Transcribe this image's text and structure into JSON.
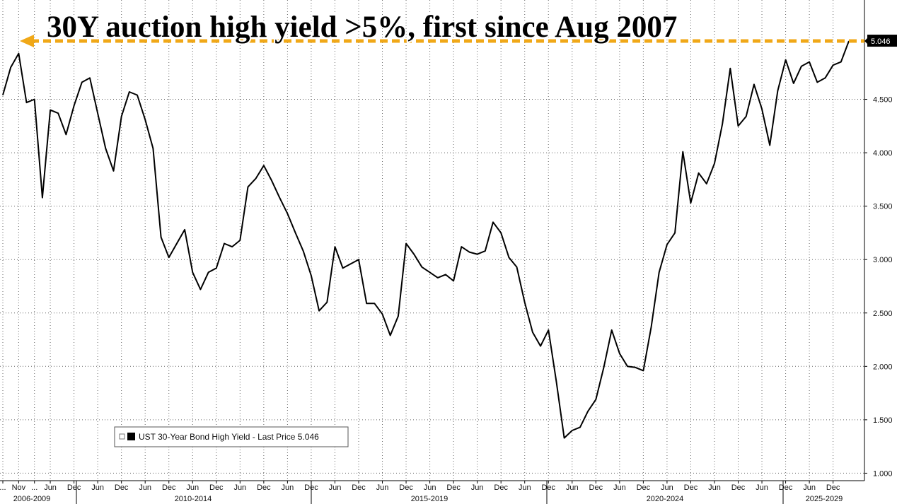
{
  "chart_data": {
    "type": "line",
    "title": "30Y auction high yield >5%, first since Aug 2007",
    "categories": [
      "...",
      null,
      "Nov",
      null,
      "...",
      null,
      "Jun",
      null,
      null,
      "Dec",
      null,
      null,
      "Jun",
      null,
      null,
      "Dec",
      null,
      null,
      "Jun",
      null,
      null,
      "Dec",
      null,
      null,
      "Jun",
      null,
      null,
      "Dec",
      null,
      null,
      "Jun",
      null,
      null,
      "Dec",
      null,
      null,
      "Jun",
      null,
      null,
      "Dec",
      null,
      null,
      "Jun",
      null,
      null,
      "Dec",
      null,
      null,
      "Jun",
      null,
      null,
      "Dec",
      null,
      null,
      "Jun",
      null,
      null,
      "Dec",
      null,
      null,
      "Jun",
      null,
      null,
      "Dec",
      null,
      null,
      "Jun",
      null,
      null,
      "Dec",
      null,
      null,
      "Jun",
      null,
      null,
      "Dec",
      null,
      null,
      "Jun",
      null,
      null,
      "Dec",
      null,
      null,
      "Jun",
      null,
      null,
      "Dec",
      null,
      null,
      "Jun",
      null,
      null,
      "Dec",
      null,
      null,
      "Jun",
      null,
      null,
      "Dec",
      null,
      null,
      "Jun",
      null,
      null,
      "Dec",
      null,
      null
    ],
    "x_groups": [
      "2006-2009",
      "2010-2014",
      "2015-2019",
      "2020-2024",
      "2025-2029"
    ],
    "series": [
      {
        "name": "UST 30-Year Bond High Yield - Last Price 5.046",
        "color": "#000000",
        "values": [
          4.54,
          4.8,
          4.93,
          4.47,
          4.5,
          3.58,
          4.4,
          4.37,
          4.17,
          4.44,
          4.66,
          4.7,
          4.37,
          4.04,
          3.83,
          4.34,
          4.57,
          4.54,
          4.31,
          4.04,
          3.21,
          3.02,
          3.15,
          3.28,
          2.88,
          2.72,
          2.88,
          2.92,
          3.15,
          3.12,
          3.18,
          3.68,
          3.76,
          3.88,
          3.74,
          3.58,
          3.43,
          3.25,
          3.08,
          2.85,
          2.52,
          2.6,
          3.12,
          2.92,
          2.96,
          3.0,
          2.59,
          2.59,
          2.49,
          2.29,
          2.47,
          3.15,
          3.05,
          2.93,
          2.88,
          2.83,
          2.86,
          2.8,
          3.12,
          3.07,
          3.05,
          3.08,
          3.35,
          3.25,
          3.02,
          2.93,
          2.6,
          2.32,
          2.19,
          2.34,
          1.86,
          1.33,
          1.4,
          1.43,
          1.58,
          1.69,
          1.99,
          2.34,
          2.12,
          2.0,
          1.99,
          1.96,
          2.37,
          2.88,
          3.14,
          3.25,
          4.01,
          3.53,
          3.81,
          3.71,
          3.9,
          4.27,
          4.79,
          4.25,
          4.34,
          4.64,
          4.41,
          4.07,
          4.58,
          4.87,
          4.65,
          4.81,
          4.85,
          4.66,
          4.7,
          4.82,
          4.85,
          5.046
        ]
      }
    ],
    "ylim": [
      0.93,
      5.43
    ],
    "yticks": [
      {
        "value": 1,
        "label": "1.000"
      },
      {
        "value": 1.5,
        "label": "1.500"
      },
      {
        "value": 2,
        "label": "2.000"
      },
      {
        "value": 2.5,
        "label": "2.500"
      },
      {
        "value": 3,
        "label": "3.000"
      },
      {
        "value": 3.5,
        "label": "3.500"
      },
      {
        "value": 4,
        "label": "4.000"
      },
      {
        "value": 4.5,
        "label": "4.500"
      }
    ],
    "grid": true
  }
}
